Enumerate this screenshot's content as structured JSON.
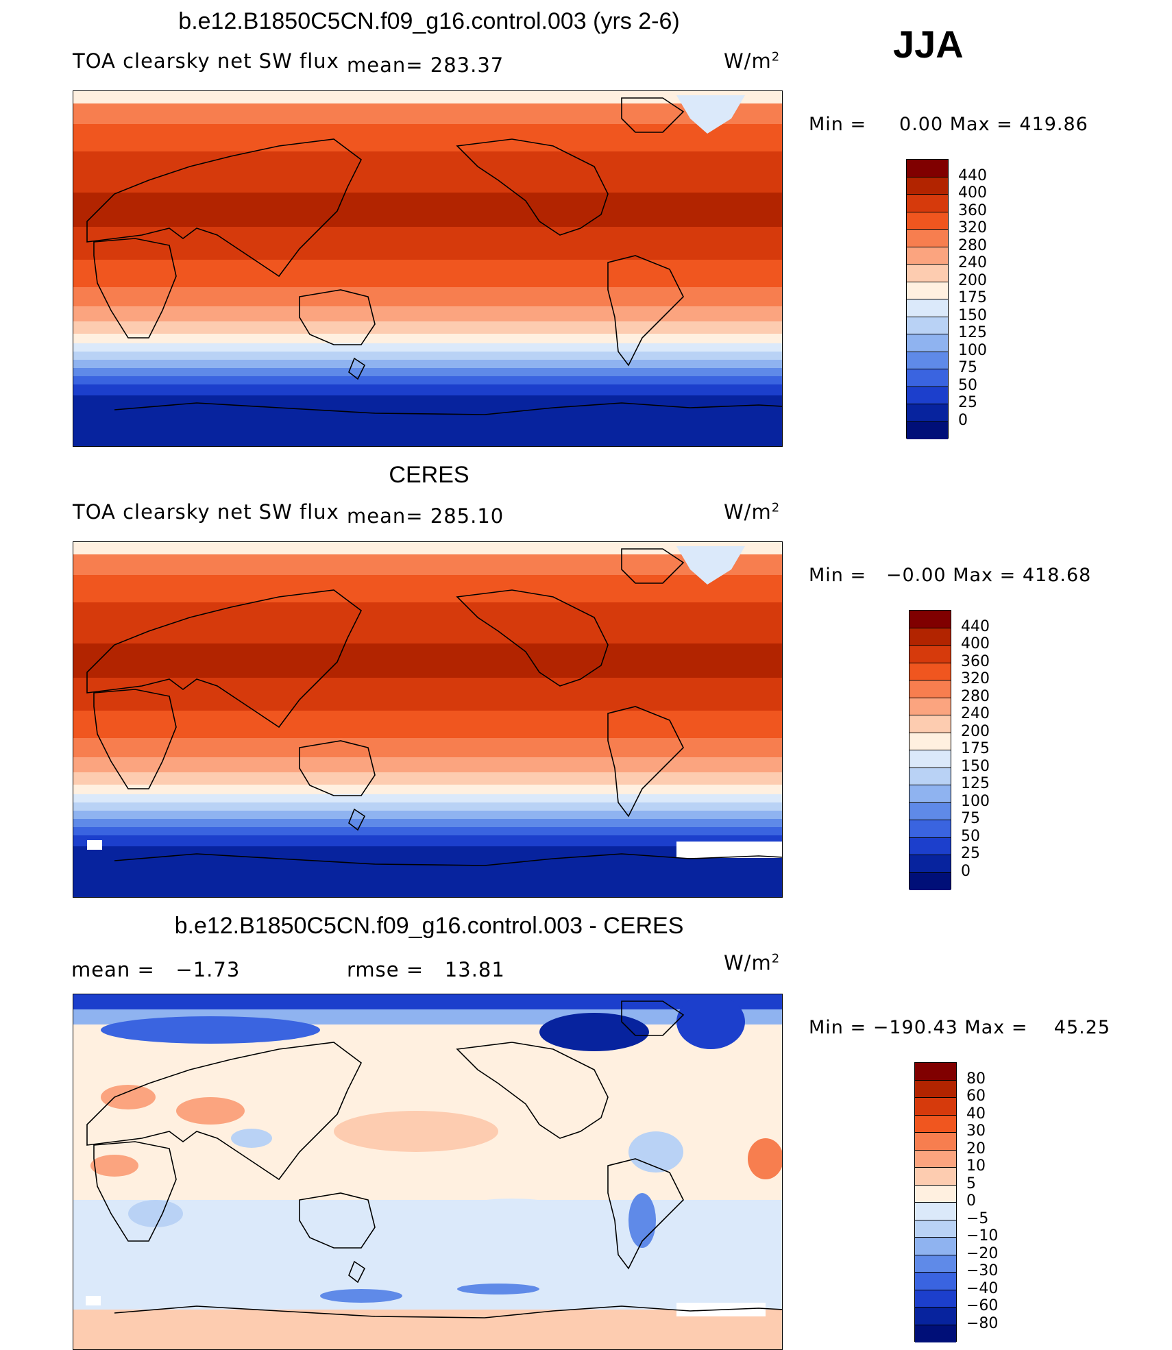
{
  "season": "JJA",
  "panels": [
    {
      "title": "b.e12.B1850C5CN.f09_g16.control.003 (yrs 2-6)",
      "left_label": "TOA clearsky net SW flux",
      "mean_label": "mean=",
      "mean_value": "283.37",
      "units": "W/m",
      "units_sup": "2",
      "min_label": "Min",
      "min_value": "0.00",
      "max_label": "Max",
      "max_value": "419.86"
    },
    {
      "title": "CERES",
      "left_label": "TOA clearsky net SW flux",
      "mean_label": "mean=",
      "mean_value": "285.10",
      "units": "W/m",
      "units_sup": "2",
      "min_label": "Min",
      "min_value": "−0.00",
      "max_label": "Max",
      "max_value": "418.68"
    },
    {
      "title": "b.e12.B1850C5CN.f09_g16.control.003 - CERES",
      "mean_label": "mean =",
      "mean_value": "−1.73",
      "rmse_label": "rmse =",
      "rmse_value": "13.81",
      "units": "W/m",
      "units_sup": "2",
      "min_label": "Min",
      "min_value": "−190.43",
      "max_label": "Max",
      "max_value": "45.25"
    }
  ],
  "chart_data": [
    {
      "type": "heatmap",
      "title": "b.e12.B1850C5CN.f09_g16.control.003 (yrs 2-6)",
      "variable": "TOA clearsky net SW flux",
      "units": "W/m2",
      "mean": 283.37,
      "min": 0.0,
      "max": 419.86,
      "colorbar_levels": [
        "440",
        "400",
        "360",
        "320",
        "280",
        "240",
        "200",
        "175",
        "150",
        "125",
        "100",
        "75",
        "50",
        "25",
        "0"
      ],
      "colorbar_colors": [
        "#800000",
        "#b22400",
        "#d63a0c",
        "#f0561f",
        "#f77e4f",
        "#fba47f",
        "#fdccb0",
        "#fff0e0",
        "#dbe9fa",
        "#b9d2f5",
        "#8fb3f0",
        "#5f8ae8",
        "#3a64e0",
        "#1c3fcc",
        "#07239e",
        "#000f78"
      ]
    },
    {
      "type": "heatmap",
      "title": "CERES",
      "variable": "TOA clearsky net SW flux",
      "units": "W/m2",
      "mean": 285.1,
      "min": -0.0,
      "max": 418.68,
      "colorbar_levels": [
        "440",
        "400",
        "360",
        "320",
        "280",
        "240",
        "200",
        "175",
        "150",
        "125",
        "100",
        "75",
        "50",
        "25",
        "0"
      ],
      "colorbar_colors": [
        "#800000",
        "#b22400",
        "#d63a0c",
        "#f0561f",
        "#f77e4f",
        "#fba47f",
        "#fdccb0",
        "#fff0e0",
        "#dbe9fa",
        "#b9d2f5",
        "#8fb3f0",
        "#5f8ae8",
        "#3a64e0",
        "#1c3fcc",
        "#07239e",
        "#000f78"
      ]
    },
    {
      "type": "heatmap",
      "title": "b.e12.B1850C5CN.f09_g16.control.003 - CERES",
      "units": "W/m2",
      "mean": -1.73,
      "rmse": 13.81,
      "min": -190.43,
      "max": 45.25,
      "colorbar_levels": [
        "80",
        "60",
        "40",
        "30",
        "20",
        "10",
        "5",
        "0",
        "−5",
        "−10",
        "−20",
        "−30",
        "−40",
        "−60",
        "−80"
      ],
      "colorbar_colors": [
        "#800000",
        "#b22400",
        "#d63a0c",
        "#f0561f",
        "#f77e4f",
        "#fba47f",
        "#fdccb0",
        "#fff0e0",
        "#dbe9fa",
        "#b9d2f5",
        "#8fb3f0",
        "#5f8ae8",
        "#3a64e0",
        "#1c3fcc",
        "#07239e",
        "#000f78"
      ]
    }
  ]
}
